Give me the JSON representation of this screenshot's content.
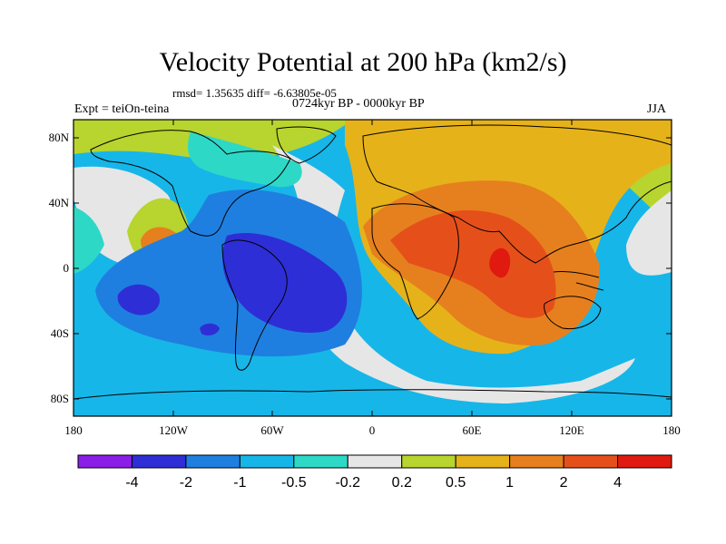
{
  "title": "Velocity Potential at 200 hPa (km2/s)",
  "stats": "rmsd= 1.35635  diff= -6.63805e-05",
  "period": "0724kyr BP - 0000kyr BP",
  "experiment": "Expt = teiOn-teina",
  "season": "JJA",
  "lat_ticks": [
    "80N",
    "40N",
    "0",
    "40S",
    "80S"
  ],
  "lon_ticks": [
    "180",
    "120W",
    "60W",
    "0",
    "60E",
    "120E",
    "180"
  ],
  "colorbar": {
    "labels": [
      "-4",
      "-2",
      "-1",
      "-0.5",
      "-0.2",
      "0.2",
      "0.5",
      "1",
      "2",
      "4"
    ],
    "colors": [
      "#8b1ee6",
      "#2e2ed6",
      "#1f7fe0",
      "#17b6e8",
      "#2ed8c6",
      "#e6e6e6",
      "#b8d42e",
      "#e6b21a",
      "#e6801e",
      "#e5501a",
      "#e01a10"
    ]
  },
  "palette": {
    "ocean_base": "#17b6e8",
    "lt_pos": "#b8d42e",
    "mid_pos": "#e6b21a",
    "high_pos": "#e6801e",
    "vhigh_pos": "#e5501a",
    "peak_pos": "#e01a10",
    "neutral": "#e6e6e6",
    "lt_neg": "#2ed8c6",
    "mid_neg": "#1f7fe0",
    "strong_neg": "#2e2ed6"
  }
}
